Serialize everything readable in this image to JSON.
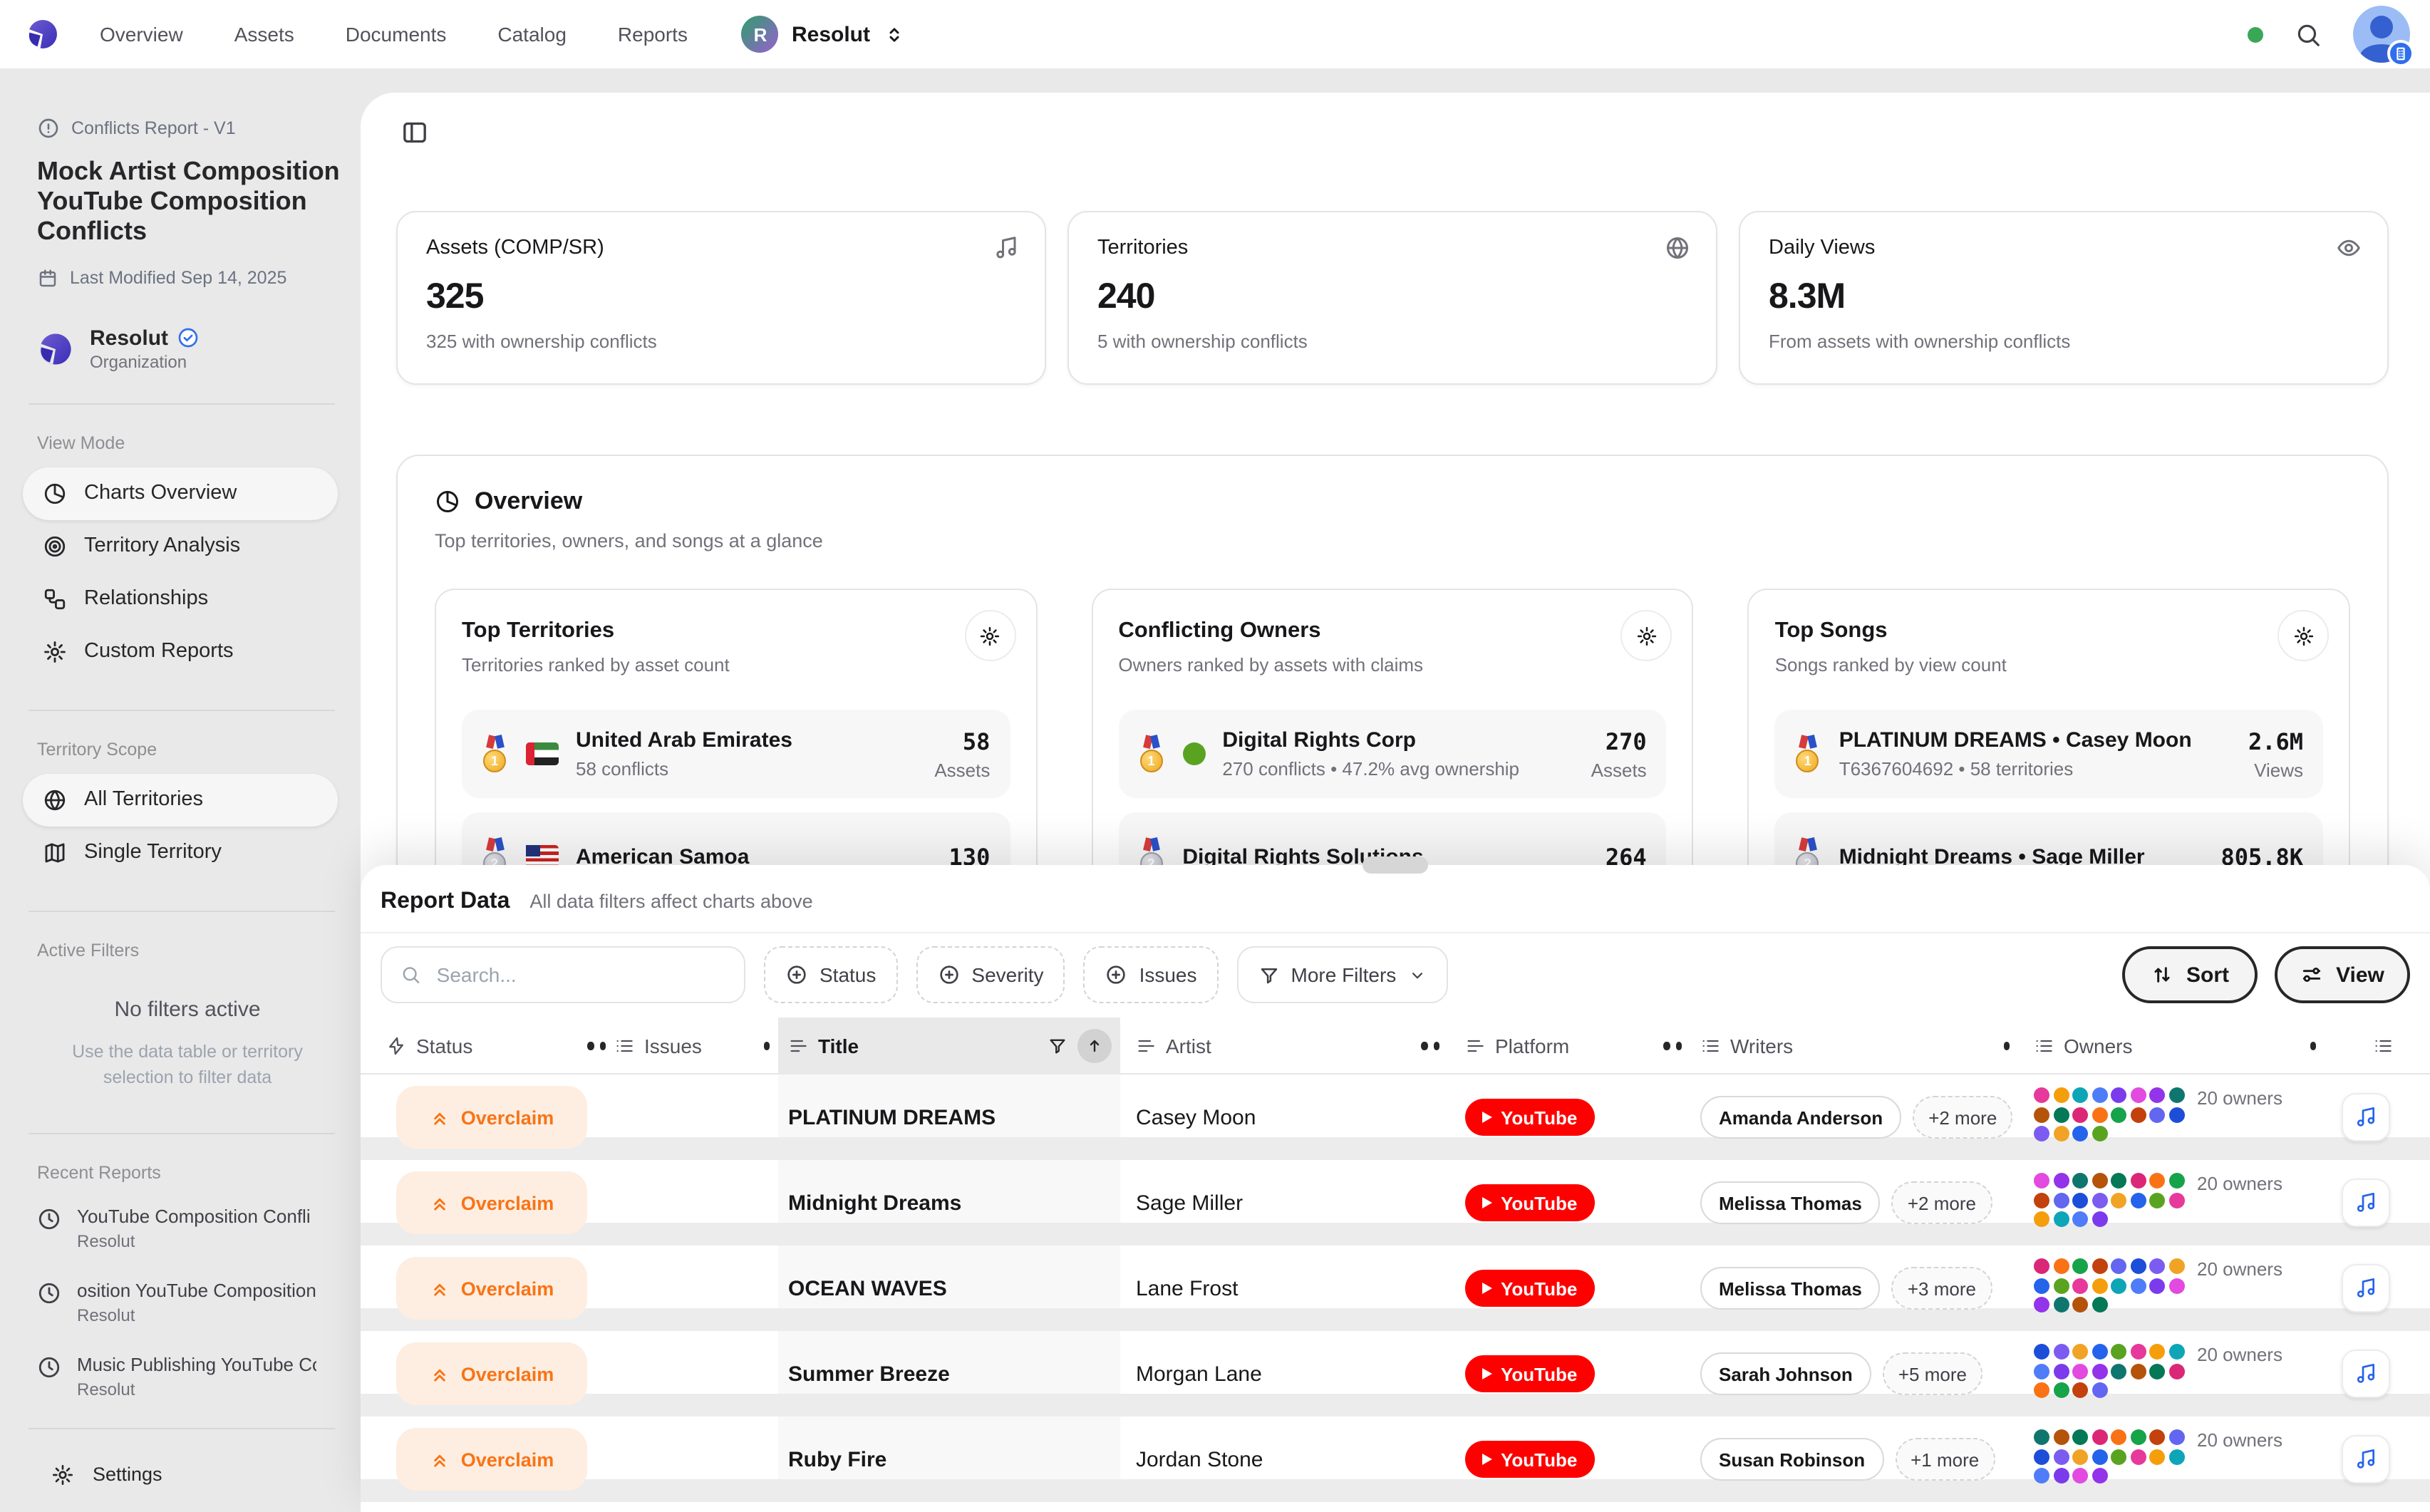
{
  "colors": {
    "accent_purple": "#4f46e5",
    "youtube_red": "#ff0000",
    "overclaim_orange": "#f97316",
    "status_green": "#3aa757",
    "owner_green_dot": "#5aa321"
  },
  "topnav": {
    "nav_items": [
      "Overview",
      "Assets",
      "Documents",
      "Catalog",
      "Reports"
    ],
    "workspace": {
      "initial": "R",
      "name": "Resolut"
    }
  },
  "sidebar": {
    "report_type": "Conflicts Report - V1",
    "title": "Mock Artist Composition YouTube Composition Conflicts",
    "last_modified": "Last Modified Sep 14, 2025",
    "org": {
      "name": "Resolut",
      "type": "Organization"
    },
    "view_mode": {
      "label": "View Mode",
      "items": [
        {
          "label": "Charts Overview"
        },
        {
          "label": "Territory Analysis"
        },
        {
          "label": "Relationships"
        },
        {
          "label": "Custom Reports"
        }
      ]
    },
    "territory_scope": {
      "label": "Territory Scope",
      "items": [
        {
          "label": "All Territories"
        },
        {
          "label": "Single Territory"
        }
      ]
    },
    "active_filters": {
      "label": "Active Filters",
      "empty_title": "No filters active",
      "empty_hint": "Use the data table or territory selection to filter data"
    },
    "recent_reports": {
      "label": "Recent Reports",
      "items": [
        {
          "title": "YouTube Composition Confli",
          "org": "Resolut"
        },
        {
          "title": "osition YouTube Composition",
          "org": "Resolut"
        },
        {
          "title": "Music Publishing YouTube Co",
          "org": "Resolut"
        }
      ]
    },
    "settings_label": "Settings"
  },
  "stats": [
    {
      "title": "Assets (COMP/SR)",
      "value": "325",
      "subtitle": "325 with ownership conflicts",
      "icon": "music-note-icon"
    },
    {
      "title": "Territories",
      "value": "240",
      "subtitle": "5 with ownership conflicts",
      "icon": "globe-icon"
    },
    {
      "title": "Daily Views",
      "value": "8.3M",
      "subtitle": "From assets with ownership conflicts",
      "icon": "eye-icon"
    }
  ],
  "overview": {
    "title": "Overview",
    "subtitle": "Top territories, owners, and songs at a glance",
    "panels": [
      {
        "title": "Top Territories",
        "subtitle": "Territories ranked by asset count",
        "rows": [
          {
            "rank": "1",
            "name": "United Arab Emirates",
            "detail": "58 conflicts",
            "value": "58",
            "unit": "Assets"
          },
          {
            "rank": "2",
            "name": "American Samoa",
            "value": "130"
          }
        ]
      },
      {
        "title": "Conflicting Owners",
        "subtitle": "Owners ranked by assets with claims",
        "rows": [
          {
            "rank": "1",
            "name": "Digital Rights Corp",
            "detail": "270 conflicts • 47.2% avg ownership",
            "value": "270",
            "unit": "Assets"
          },
          {
            "rank": "2",
            "name": "Digital Rights Solutions",
            "value": "264"
          }
        ]
      },
      {
        "title": "Top Songs",
        "subtitle": "Songs ranked by view count",
        "rows": [
          {
            "rank": "1",
            "name": "PLATINUM DREAMS • Casey Moon",
            "detail": "T6367604692 • 58 territories",
            "value": "2.6M",
            "unit": "Views"
          },
          {
            "rank": "2",
            "name": "Midnight Dreams • Sage Miller",
            "value": "805.8K"
          }
        ]
      }
    ]
  },
  "report": {
    "title": "Report Data",
    "note": "All data filters affect charts above",
    "search_placeholder": "Search...",
    "filter_chips": [
      "Status",
      "Severity",
      "Issues"
    ],
    "more_filters_label": "More Filters",
    "sort_label": "Sort",
    "view_label": "View",
    "columns": {
      "status": "Status",
      "issues": "Issues",
      "title": "Title",
      "artist": "Artist",
      "platform": "Platform",
      "writers": "Writers",
      "owners": "Owners"
    },
    "rows": [
      {
        "status": "Overclaim",
        "title": "PLATINUM DREAMS",
        "artist": "Casey Moon",
        "platform": "YouTube",
        "writer": "Amanda Anderson",
        "writers_more": "+2 more",
        "owners": "20 owners"
      },
      {
        "status": "Overclaim",
        "title": "Midnight Dreams",
        "artist": "Sage Miller",
        "platform": "YouTube",
        "writer": "Melissa Thomas",
        "writers_more": "+2 more",
        "owners": "20 owners"
      },
      {
        "status": "Overclaim",
        "title": "OCEAN WAVES",
        "artist": "Lane Frost",
        "platform": "YouTube",
        "writer": "Melissa Thomas",
        "writers_more": "+3 more",
        "owners": "20 owners"
      },
      {
        "status": "Overclaim",
        "title": "Summer Breeze",
        "artist": "Morgan Lane",
        "platform": "YouTube",
        "writer": "Sarah Johnson",
        "writers_more": "+5 more",
        "owners": "20 owners"
      },
      {
        "status": "Overclaim",
        "title": "Ruby Fire",
        "artist": "Jordan Stone",
        "platform": "YouTube",
        "writer": "Susan Robinson",
        "writers_more": "+1 more",
        "owners": "20 owners"
      }
    ],
    "owners_palette": [
      "#e6399b",
      "#f59e0b",
      "#0ea5b7",
      "#4f7df9",
      "#7c3aed",
      "#e24ae0",
      "#9333ea",
      "#0f766e",
      "#b45309",
      "#047857",
      "#db2777",
      "#f97316",
      "#16a34a",
      "#c2410c",
      "#6366f1",
      "#1d4ed8",
      "#7c5cf0",
      "#f0a325",
      "#2563eb",
      "#5aa321"
    ]
  }
}
